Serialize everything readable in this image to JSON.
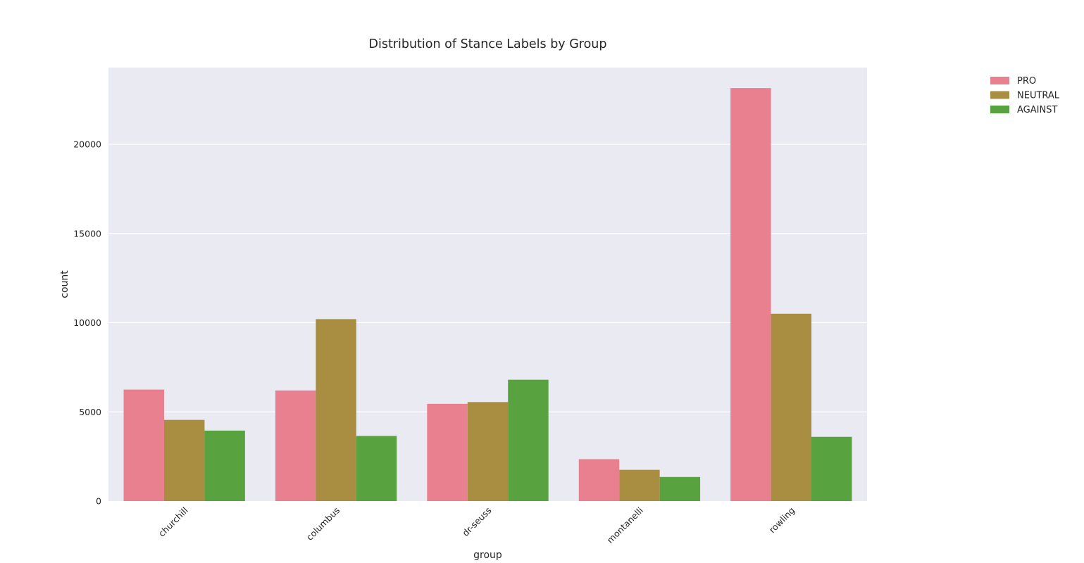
{
  "chart_data": {
    "type": "bar",
    "title": "Distribution of Stance Labels by Group",
    "xlabel": "group",
    "ylabel": "count",
    "categories": [
      "churchill",
      "columbus",
      "dr-seuss",
      "montanelli",
      "rowling"
    ],
    "series": [
      {
        "name": "PRO",
        "color": "#e8808f",
        "values": [
          6250,
          6200,
          5450,
          2350,
          23150
        ]
      },
      {
        "name": "NEUTRAL",
        "color": "#a98e41",
        "values": [
          4550,
          10200,
          5550,
          1750,
          10500
        ]
      },
      {
        "name": "AGAINST",
        "color": "#58a23f",
        "values": [
          3950,
          3650,
          6800,
          1350,
          3600
        ]
      }
    ],
    "ylim": [
      0,
      24300
    ],
    "yticks": [
      0,
      5000,
      10000,
      15000,
      20000
    ],
    "grid": true,
    "legend_position": "top-right",
    "background_color": "#eaeaf2",
    "grid_color": "#ffffff"
  }
}
